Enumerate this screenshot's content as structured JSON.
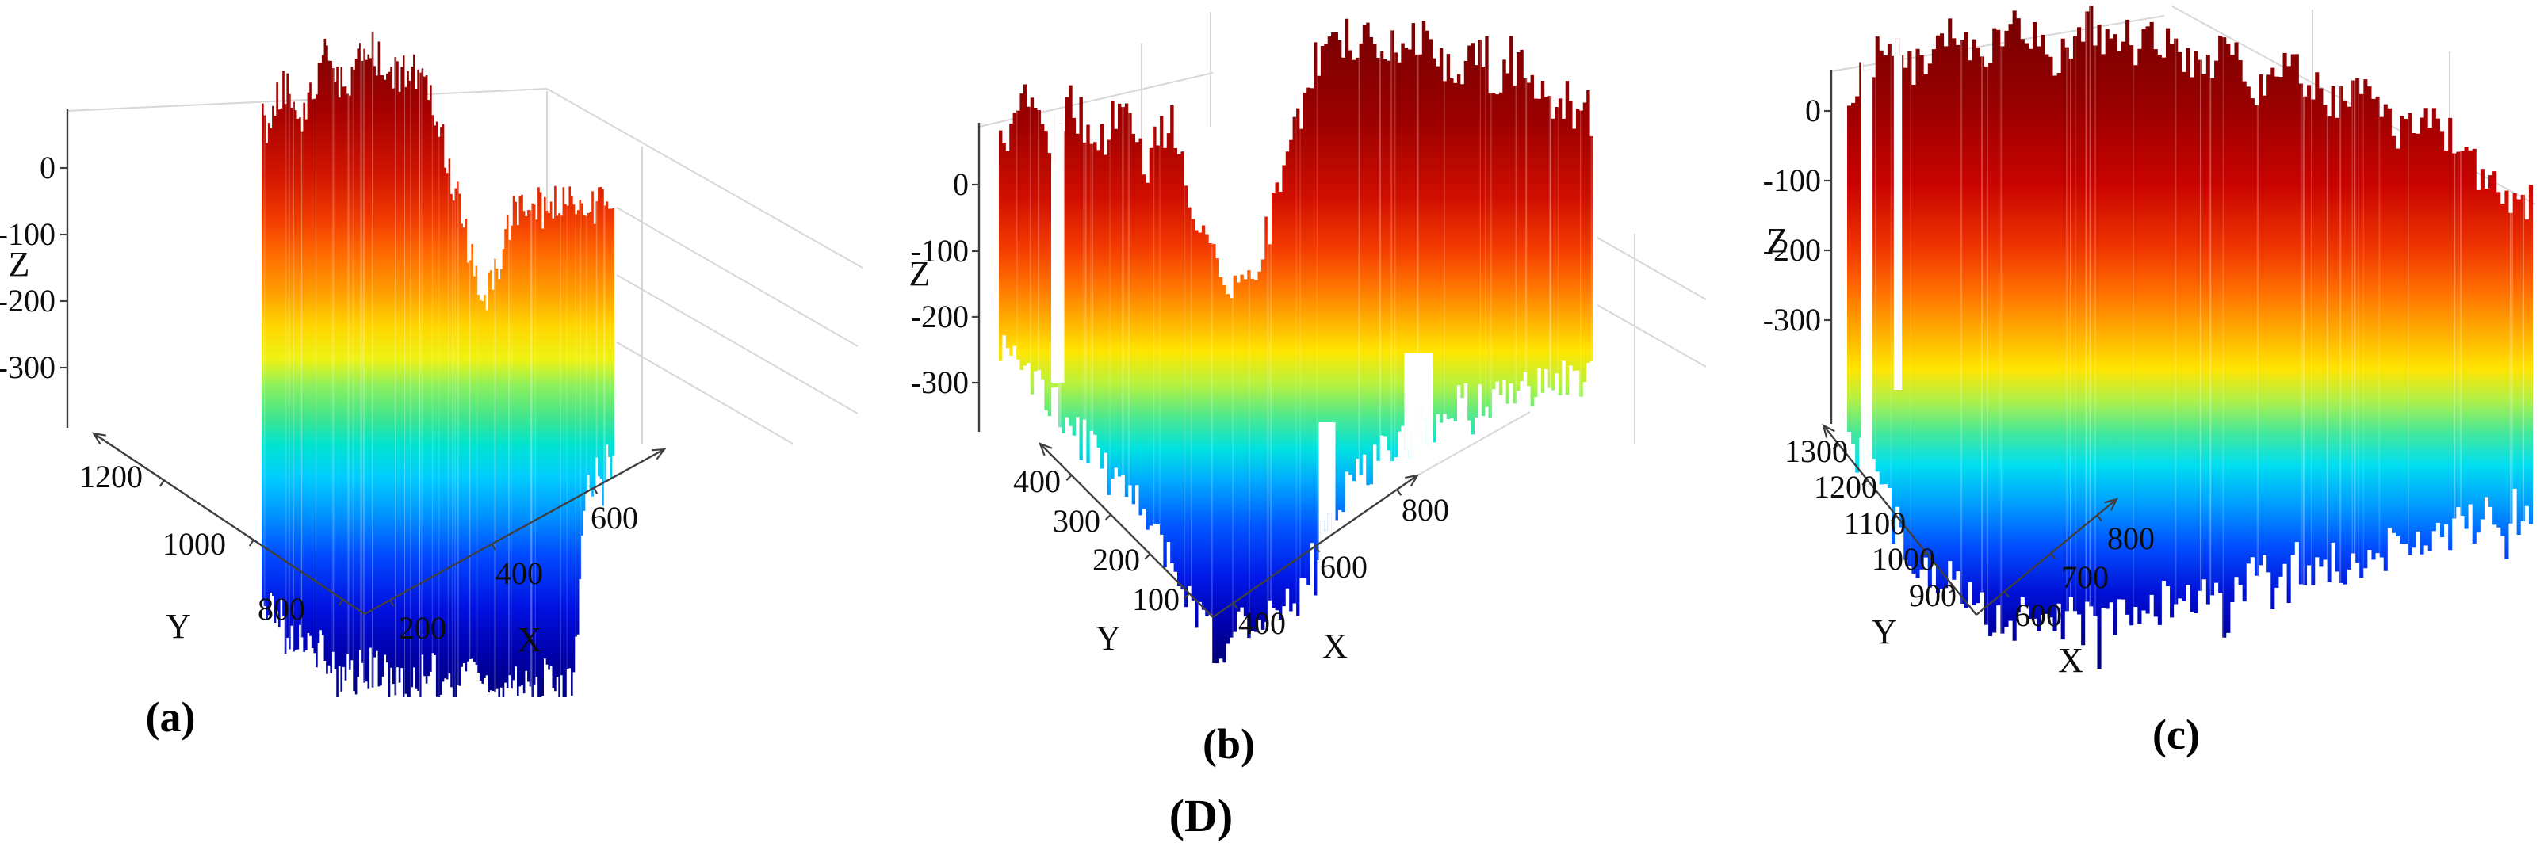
{
  "figure": {
    "group_caption": "(D)",
    "panels": [
      {
        "caption": "(a)",
        "xlabel": "X",
        "ylabel": "Y",
        "zlabel": "Z"
      },
      {
        "caption": "(b)",
        "xlabel": "X",
        "ylabel": "Y",
        "zlabel": "Z"
      },
      {
        "caption": "(c)",
        "xlabel": "X",
        "ylabel": "Y",
        "zlabel": "Z"
      }
    ]
  },
  "chart_data": [
    {
      "type": "3d-surface",
      "caption": "(a)",
      "xlabel": "X",
      "ylabel": "Y",
      "zlabel": "Z",
      "xticks": [
        200,
        400,
        600
      ],
      "yticks": [
        800,
        1000,
        1200
      ],
      "zticks": [
        0,
        -100,
        -200,
        -300
      ],
      "xlim": [
        150,
        650
      ],
      "ylim": [
        750,
        1350
      ],
      "zlim": [
        -400,
        100
      ],
      "grid": true,
      "legend": false,
      "colormap": "jet",
      "colormap_colors": [
        "#00007F",
        "#0000FF",
        "#007FFF",
        "#00FFFF",
        "#7FFF7F",
        "#FFFF00",
        "#FF7F00",
        "#FF0000",
        "#7F0000"
      ],
      "surface_top_z_profile": [
        [
          0,
          18
        ],
        [
          0.06,
          48
        ],
        [
          0.12,
          30
        ],
        [
          0.18,
          65
        ],
        [
          0.24,
          42
        ],
        [
          0.3,
          72
        ],
        [
          0.36,
          50
        ],
        [
          0.42,
          60
        ],
        [
          0.48,
          35
        ],
        [
          0.52,
          10
        ],
        [
          0.56,
          -25
        ],
        [
          0.6,
          -60
        ],
        [
          0.63,
          -78
        ],
        [
          0.66,
          -60
        ],
        [
          0.7,
          -30
        ],
        [
          0.74,
          -20
        ],
        [
          0.8,
          -24
        ],
        [
          0.86,
          -16
        ],
        [
          0.92,
          -22
        ],
        [
          1,
          -17
        ]
      ],
      "surface_bottom_z_profile": [
        [
          0,
          -358
        ],
        [
          0.08,
          -372
        ],
        [
          0.16,
          -366
        ],
        [
          0.24,
          -380
        ],
        [
          0.32,
          -372
        ],
        [
          0.4,
          -385
        ],
        [
          0.48,
          -378
        ],
        [
          0.56,
          -388
        ],
        [
          0.64,
          -380
        ],
        [
          0.72,
          -390
        ],
        [
          0.8,
          -384
        ],
        [
          0.88,
          -392
        ],
        [
          0.94,
          -386
        ],
        [
          1,
          -390
        ]
      ],
      "data_gaps": []
    },
    {
      "type": "3d-surface",
      "caption": "(b)",
      "xlabel": "X",
      "ylabel": "Y",
      "zlabel": "Z",
      "xticks": [
        400,
        600,
        800
      ],
      "yticks": [
        100,
        200,
        300,
        400
      ],
      "zticks": [
        0,
        -100,
        -200,
        -300
      ],
      "xlim": [
        350,
        850
      ],
      "ylim": [
        40,
        480
      ],
      "zlim": [
        -400,
        100
      ],
      "grid": true,
      "legend": false,
      "colormap": "jet",
      "colormap_colors": [
        "#00007F",
        "#0000FF",
        "#007FFF",
        "#00FFFF",
        "#7FFF7F",
        "#FFFF00",
        "#FF7F00",
        "#FF0000",
        "#7F0000"
      ],
      "surface_top_z_profile": [
        [
          0,
          22
        ],
        [
          0.04,
          42
        ],
        [
          0.08,
          18
        ],
        [
          0.12,
          40
        ],
        [
          0.16,
          12
        ],
        [
          0.2,
          38
        ],
        [
          0.24,
          8
        ],
        [
          0.28,
          30
        ],
        [
          0.32,
          -5
        ],
        [
          0.36,
          -38
        ],
        [
          0.4,
          -55
        ],
        [
          0.44,
          -30
        ],
        [
          0.47,
          -5
        ],
        [
          0.5,
          30
        ],
        [
          0.53,
          62
        ],
        [
          0.56,
          74
        ],
        [
          0.6,
          70
        ],
        [
          0.64,
          76
        ],
        [
          0.68,
          66
        ],
        [
          0.72,
          72
        ],
        [
          0.76,
          60
        ],
        [
          0.8,
          64
        ],
        [
          0.84,
          54
        ],
        [
          0.88,
          58
        ],
        [
          0.92,
          46
        ],
        [
          0.96,
          40
        ],
        [
          1,
          34
        ]
      ],
      "surface_bottom_z_profile": [
        [
          0,
          -360
        ],
        [
          0.1,
          -375
        ],
        [
          0.2,
          -368
        ],
        [
          0.3,
          -382
        ],
        [
          0.36,
          -390
        ],
        [
          0.44,
          -384
        ],
        [
          0.52,
          -388
        ],
        [
          0.6,
          -380
        ],
        [
          0.68,
          -386
        ],
        [
          0.76,
          -378
        ],
        [
          0.84,
          -384
        ],
        [
          0.92,
          -380
        ],
        [
          1,
          -384
        ]
      ],
      "data_gaps": [
        {
          "s0": 0.538,
          "s1": 0.566,
          "kind": "bottom",
          "z": -120
        },
        {
          "s0": 0.682,
          "s1": 0.73,
          "kind": "bottom",
          "z": -85
        },
        {
          "s0": 0.088,
          "s1": 0.11,
          "kind": "top",
          "z": -100
        }
      ]
    },
    {
      "type": "3d-surface",
      "caption": "(c)",
      "xlabel": "X",
      "ylabel": "Y",
      "zlabel": "Z",
      "xticks": [
        600,
        700,
        800
      ],
      "yticks": [
        900,
        1000,
        1100,
        1200,
        1300
      ],
      "zticks": [
        0,
        -100,
        -200,
        -300
      ],
      "xlim": [
        540,
        840
      ],
      "ylim": [
        830,
        1370
      ],
      "zlim": [
        -400,
        100
      ],
      "grid": true,
      "legend": false,
      "colormap": "jet",
      "colormap_colors": [
        "#00007F",
        "#0000FF",
        "#007FFF",
        "#00FFFF",
        "#7FFF7F",
        "#FFFF00",
        "#FF7F00",
        "#FF0000",
        "#7F0000"
      ],
      "surface_top_z_profile": [
        [
          0,
          8
        ],
        [
          0.05,
          38
        ],
        [
          0.1,
          22
        ],
        [
          0.15,
          46
        ],
        [
          0.2,
          32
        ],
        [
          0.25,
          52
        ],
        [
          0.3,
          28
        ],
        [
          0.35,
          50
        ],
        [
          0.4,
          33
        ],
        [
          0.45,
          44
        ],
        [
          0.5,
          22
        ],
        [
          0.55,
          36
        ],
        [
          0.6,
          12
        ],
        [
          0.65,
          26
        ],
        [
          0.7,
          2
        ],
        [
          0.75,
          14
        ],
        [
          0.8,
          -14
        ],
        [
          0.85,
          -4
        ],
        [
          0.9,
          -28
        ],
        [
          0.95,
          -44
        ],
        [
          1,
          -54
        ]
      ],
      "surface_bottom_z_profile": [
        [
          0,
          -350
        ],
        [
          0.08,
          -368
        ],
        [
          0.16,
          -360
        ],
        [
          0.24,
          -375
        ],
        [
          0.32,
          -368
        ],
        [
          0.4,
          -380
        ],
        [
          0.48,
          -372
        ],
        [
          0.56,
          -384
        ],
        [
          0.64,
          -376
        ],
        [
          0.72,
          -386
        ],
        [
          0.8,
          -378
        ],
        [
          0.88,
          -382
        ],
        [
          0.94,
          -376
        ],
        [
          1,
          -380
        ]
      ],
      "data_gaps": [
        {
          "s0": 0.02,
          "s1": 0.036,
          "kind": "top",
          "z": -210
        },
        {
          "s0": 0.068,
          "s1": 0.08,
          "kind": "top",
          "z": -160
        }
      ]
    }
  ]
}
